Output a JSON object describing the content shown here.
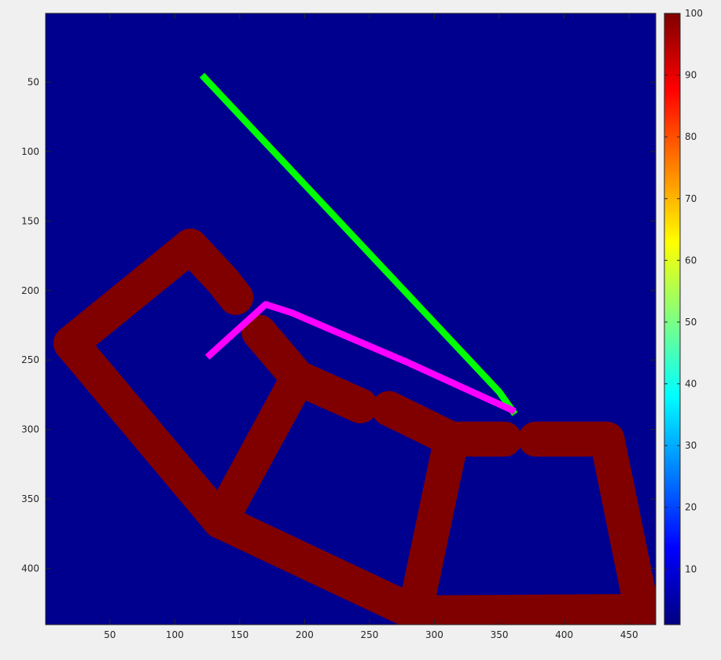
{
  "chart_data": {
    "type": "heatmap",
    "title": "",
    "xlabel": "",
    "ylabel": "",
    "xlim": [
      0.5,
      470.5
    ],
    "ylim": [
      0.5,
      440.5
    ],
    "x_axis_reversed": false,
    "y_axis_reversed": true,
    "x_ticks": [
      50,
      100,
      150,
      200,
      250,
      300,
      350,
      400,
      450
    ],
    "y_ticks": [
      50,
      100,
      150,
      200,
      250,
      300,
      350,
      400
    ],
    "grid": false,
    "colormap": "jet",
    "colorbar": {
      "limits": [
        1,
        100
      ],
      "ticks": [
        10,
        20,
        30,
        40,
        50,
        60,
        70,
        80,
        90,
        100
      ],
      "placement": "right"
    },
    "background_value": 1,
    "background_color": "#00008f",
    "obstacles": {
      "value": 100,
      "color": "#800000",
      "width": 26,
      "polylines": [
        [
          [
            112,
            168
          ],
          [
            137,
            193
          ],
          [
            147,
            205
          ]
        ],
        [
          [
            112,
            168
          ],
          [
            20,
            238
          ],
          [
            135,
            366
          ],
          [
            285,
            432
          ],
          [
            460,
            431
          ],
          [
            433,
            307
          ],
          [
            378,
            307
          ]
        ],
        [
          [
            135,
            366
          ],
          [
            195,
            263
          ],
          [
            243,
            283
          ]
        ],
        [
          [
            195,
            263
          ],
          [
            165,
            230
          ]
        ],
        [
          [
            285,
            432
          ],
          [
            313,
            307
          ],
          [
            354,
            307
          ]
        ],
        [
          [
            313,
            307
          ],
          [
            265,
            285
          ]
        ]
      ]
    },
    "paths": [
      {
        "value": 50,
        "color": "#00ff00",
        "width": 5,
        "points": [
          [
            121,
            45
          ],
          [
            350,
            273
          ],
          [
            362,
            289
          ]
        ]
      },
      {
        "value": 55,
        "color": "#ff00ff",
        "width": 5,
        "points": [
          [
            125,
            248
          ],
          [
            170,
            210
          ],
          [
            190,
            216
          ],
          [
            280,
            252
          ],
          [
            362,
            287
          ]
        ]
      }
    ]
  }
}
